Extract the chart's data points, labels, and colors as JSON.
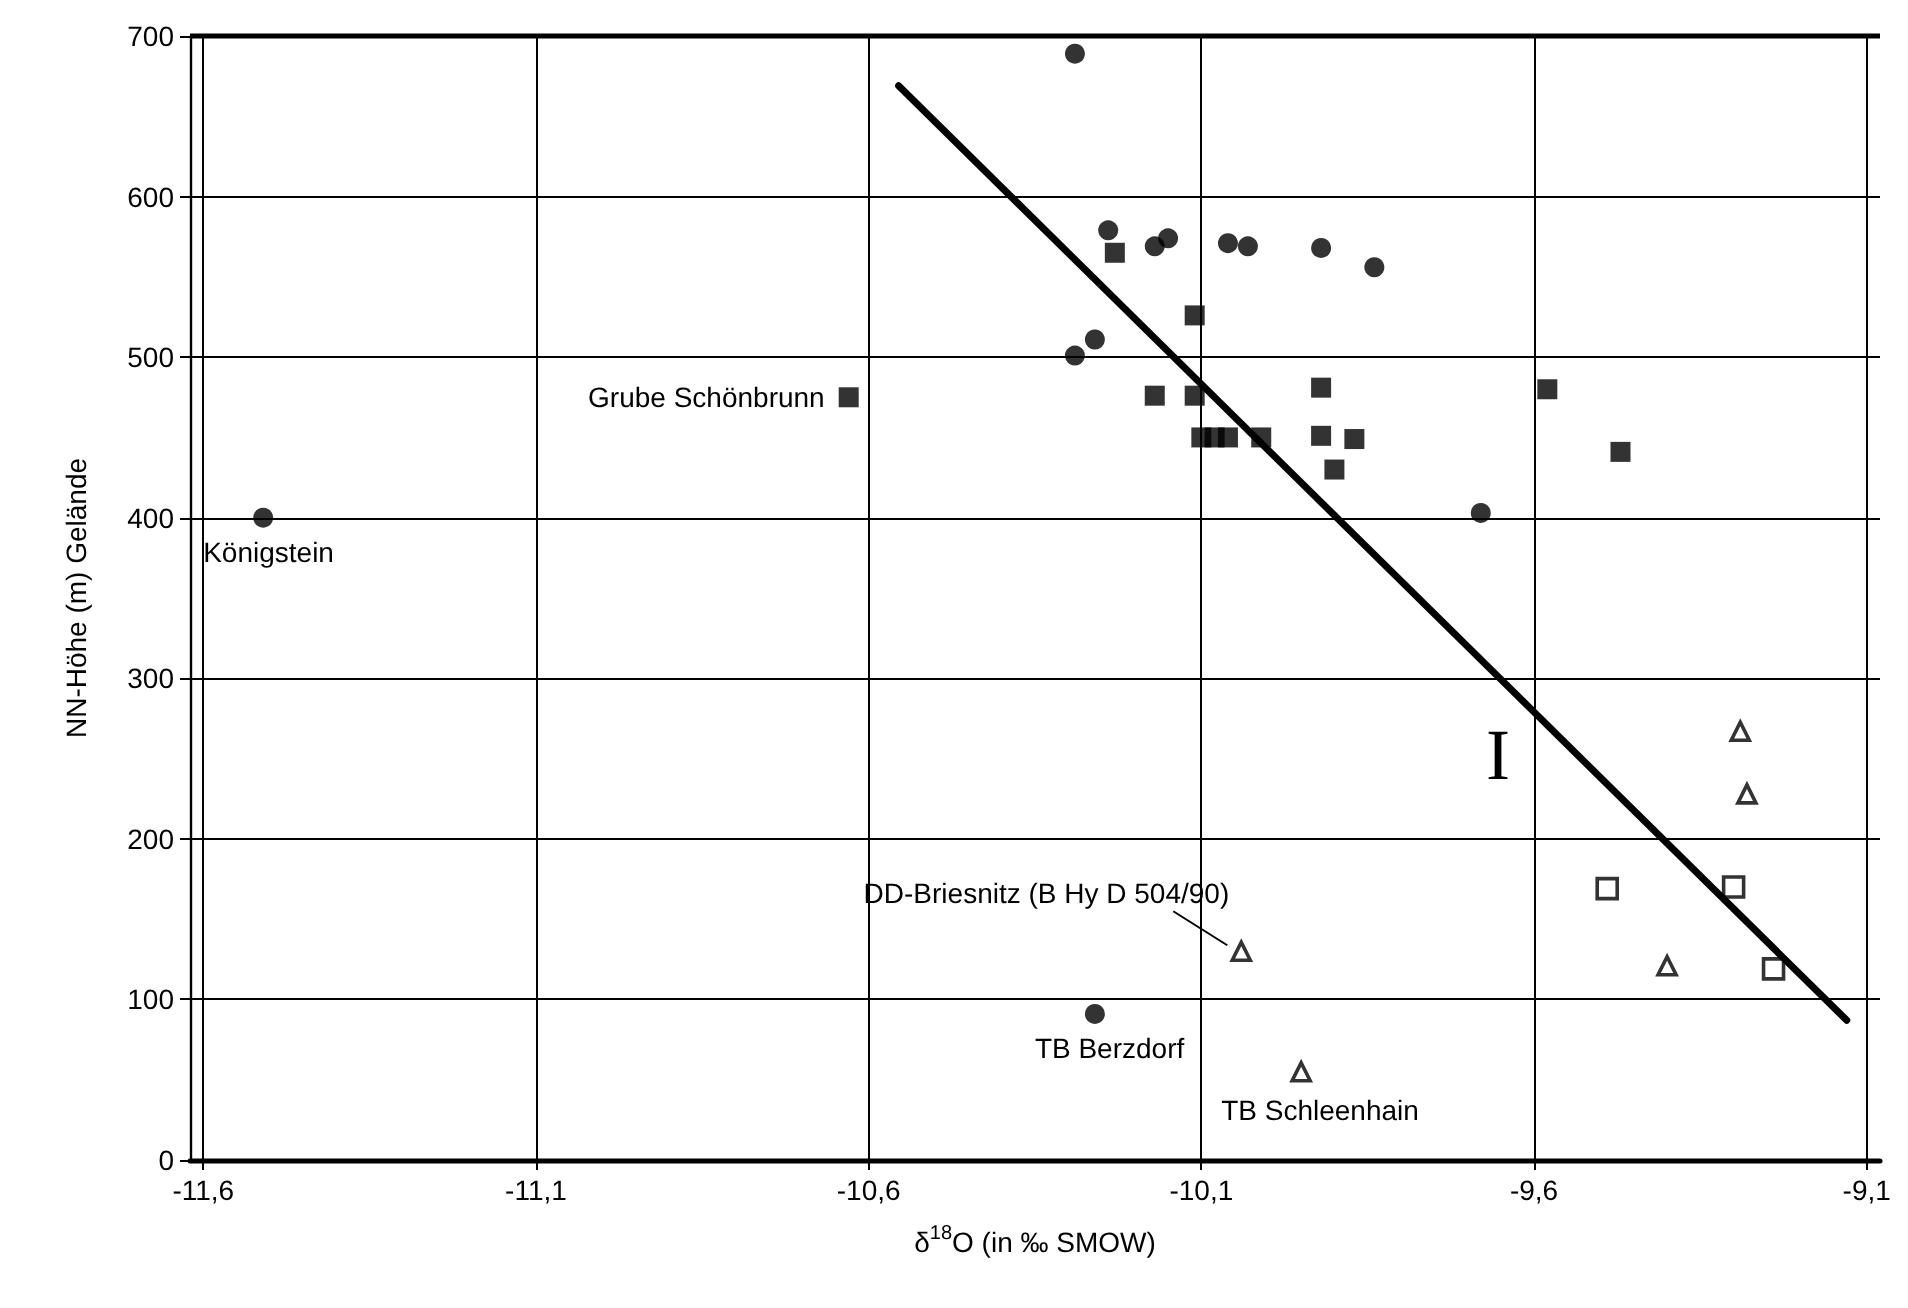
{
  "chart_data": {
    "type": "scatter",
    "xlabel": "δ$^{18}$O (in ‰ SMOW)",
    "ylabel": "NN-Höhe (m) Gelände",
    "xlim": [
      -11.62,
      -9.08
    ],
    "xticks": [
      {
        "value": -11.6,
        "label": "-11,6"
      },
      {
        "value": -11.1,
        "label": "-11,1"
      },
      {
        "value": -10.6,
        "label": "-10,6"
      },
      {
        "value": -10.1,
        "label": "-10,1"
      },
      {
        "value": -9.6,
        "label": "-9,6"
      },
      {
        "value": -9.1,
        "label": "-9,1"
      }
    ],
    "ylim": [
      0,
      700
    ],
    "yticks": [
      0,
      100,
      200,
      300,
      400,
      500,
      600,
      700
    ],
    "grid": true,
    "series": [
      {
        "color": "#000000",
        "marker": "circle",
        "x": [
          -10.29,
          -10.24,
          -10.17,
          -10.15,
          -10.06,
          -10.03,
          -9.92,
          -9.84,
          -10.29,
          -10.26,
          -9.68,
          -11.51,
          -10.26
        ],
        "values": [
          689,
          579,
          569,
          574,
          571,
          569,
          568,
          556,
          501,
          511,
          403,
          400,
          91
        ]
      },
      {
        "color": "#000000",
        "marker": "square",
        "x": [
          -10.23,
          -10.11,
          -10.63,
          -10.17,
          -10.11,
          -10.1,
          -10.08,
          -10.06,
          -10.01,
          -9.92,
          -9.87,
          -9.9,
          -9.92,
          -9.58,
          -9.47
        ],
        "values": [
          565,
          526,
          475,
          476,
          476,
          450,
          450,
          450,
          450,
          451,
          449,
          430,
          481,
          480,
          441
        ]
      },
      {
        "color": "#000000",
        "marker": "triangle",
        "x": [
          -9.29,
          -9.28,
          -9.4,
          -10.04,
          -9.95
        ],
        "values": [
          267,
          228,
          121,
          130,
          55
        ]
      },
      {
        "color": "#000000",
        "marker": "square",
        "x": [
          -9.49,
          -9.3,
          -9.24
        ],
        "values": [
          169,
          170,
          119
        ]
      },
      {
        "type": "line",
        "color": "#000000",
        "marker": "none",
        "line_style": "solid",
        "x": [
          -10.555,
          -9.13
        ],
        "values": [
          669,
          87
        ]
      }
    ],
    "annotations": [
      {
        "text": "Grube Schönbrunn",
        "x": -10.63,
        "y": 475
      },
      {
        "text": "Königstein",
        "x": -11.51,
        "y": 400
      },
      {
        "text": "DD-Briesnitz (B Hy D 504/90)",
        "x": -10.04,
        "y": 130
      },
      {
        "text": "TB Berzdorf",
        "x": -10.26,
        "y": 91
      },
      {
        "text": "TB Schleenhain",
        "x": -9.95,
        "y": 55
      },
      "I"
    ]
  }
}
